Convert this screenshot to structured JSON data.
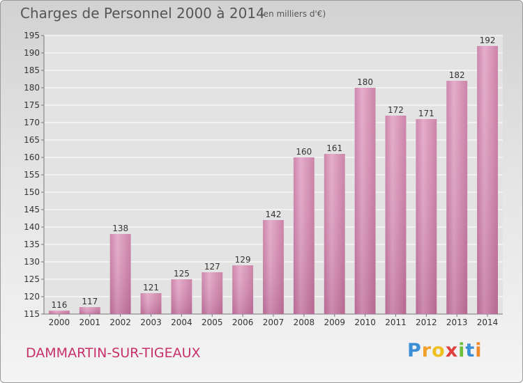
{
  "chart_data": {
    "type": "bar",
    "title": "Charges de Personnel 2000 à 2014",
    "subtitle": "(en milliers d'€)",
    "categories": [
      "2000",
      "2001",
      "2002",
      "2003",
      "2004",
      "2005",
      "2006",
      "2007",
      "2008",
      "2009",
      "2010",
      "2011",
      "2012",
      "2013",
      "2014"
    ],
    "values": [
      116,
      117,
      138,
      121,
      125,
      127,
      129,
      142,
      160,
      161,
      180,
      172,
      171,
      182,
      192
    ],
    "ylim": [
      115,
      195
    ],
    "yticks": [
      115,
      120,
      125,
      130,
      135,
      140,
      145,
      150,
      155,
      160,
      165,
      170,
      175,
      180,
      185,
      190,
      195
    ],
    "grid": true,
    "bar_color": "#d98ab4"
  },
  "footer": {
    "commune": "DAMMARTIN-SUR-TIGEAUX",
    "logo_letters": [
      "P",
      "r",
      "o",
      "x",
      "i",
      "t",
      "i"
    ]
  }
}
